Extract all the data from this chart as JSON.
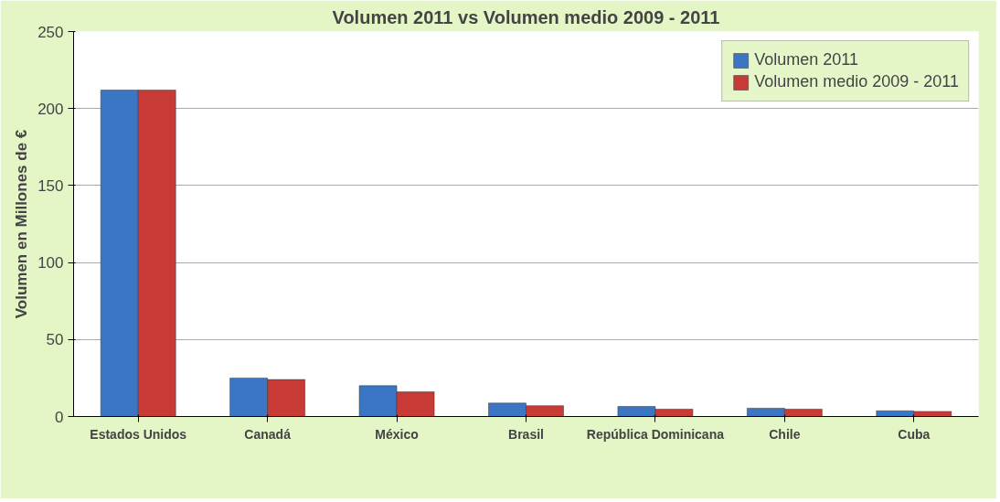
{
  "chart_data": {
    "type": "bar",
    "title": "Volumen 2011 vs Volumen medio 2009 - 2011",
    "ylabel": "Volumen en Millones de €",
    "categories": [
      "Estados Unidos",
      "Canadá",
      "México",
      "Brasil",
      "República Dominicana",
      "Chile",
      "Cuba"
    ],
    "series": [
      {
        "name": "Volumen 2011",
        "color": "#3a76c4",
        "values": [
          212,
          25,
          20,
          8.7,
          6.5,
          5.4,
          3.7
        ]
      },
      {
        "name": "Volumen medio 2009 - 2011",
        "color": "#c83a36",
        "values": [
          212,
          24,
          16,
          7,
          4.8,
          4.8,
          3.3
        ]
      }
    ],
    "ylim": [
      0,
      250
    ],
    "yticks": [
      0,
      50,
      100,
      150,
      200,
      250
    ],
    "grid": "y",
    "legend": "top right"
  }
}
